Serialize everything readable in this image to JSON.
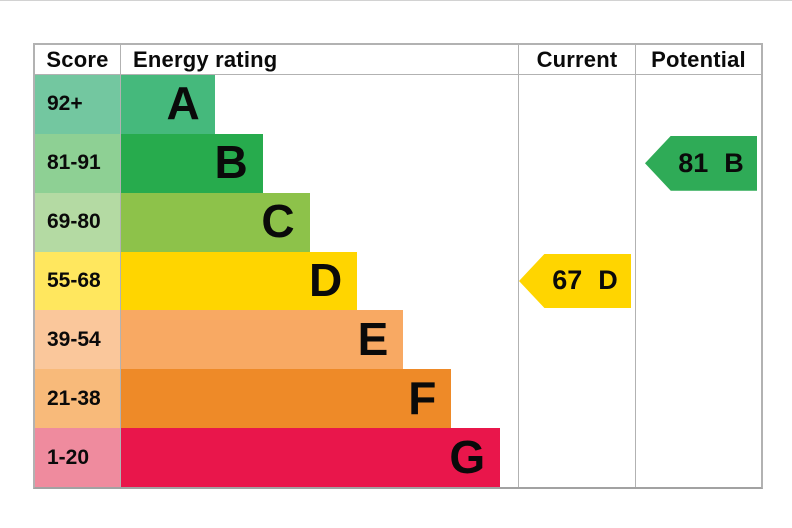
{
  "chart_data": {
    "type": "bar",
    "title": "",
    "columns": {
      "score": "Score",
      "rating": "Energy rating",
      "current": "Current",
      "potential": "Potential"
    },
    "bands": [
      {
        "letter": "A",
        "score": "92+",
        "color": "#45b97c",
        "tint": "#73c7a0",
        "width_pct": 23.6
      },
      {
        "letter": "B",
        "score": "81-91",
        "color": "#27ab4d",
        "tint": "#8ed094",
        "width_pct": 35.7
      },
      {
        "letter": "C",
        "score": "69-80",
        "color": "#8dc24a",
        "tint": "#b4daa3",
        "width_pct": 47.5
      },
      {
        "letter": "D",
        "score": "55-68",
        "color": "#ffd500",
        "tint": "#ffe75e",
        "width_pct": 59.5
      },
      {
        "letter": "E",
        "score": "39-54",
        "color": "#f8a963",
        "tint": "#fac79b",
        "width_pct": 71.1
      },
      {
        "letter": "F",
        "score": "21-38",
        "color": "#ee8a28",
        "tint": "#f8ba7a",
        "width_pct": 83.2
      },
      {
        "letter": "G",
        "score": "1-20",
        "color": "#e9164b",
        "tint": "#ef8b9e",
        "width_pct": 95.5
      }
    ],
    "current": {
      "value": "67",
      "letter": "D",
      "band_index": 3,
      "color": "#ffd500"
    },
    "potential": {
      "value": "81",
      "letter": "B",
      "band_index": 1,
      "color": "#2fab57"
    }
  }
}
